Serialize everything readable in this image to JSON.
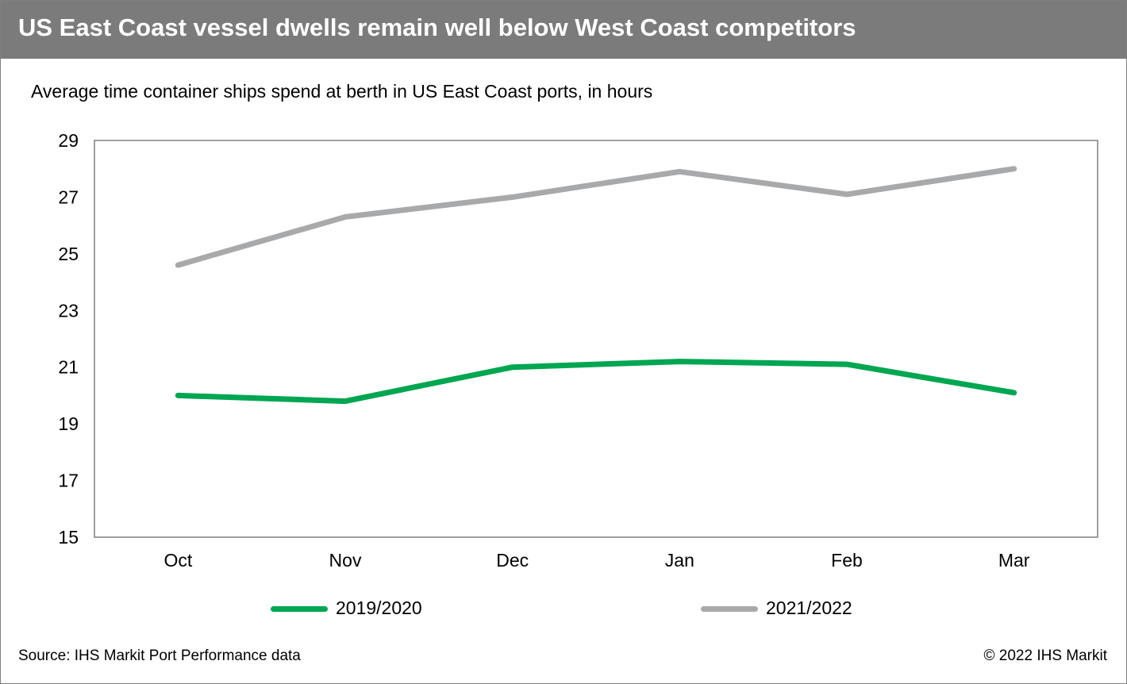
{
  "title": "US East Coast vessel dwells remain well below West Coast competitors",
  "subtitle": "Average time container ships spend at berth in US East Coast ports, in hours",
  "source": "Source: IHS Markit Port Performance data",
  "copyright": "© 2022 IHS Markit",
  "colors": {
    "series_2019_2020": "#00a651",
    "series_2021_2022": "#a8a9ab",
    "header_bg": "#7a7b7a",
    "axis": "#808080"
  },
  "chart_data": {
    "type": "line",
    "title": "US East Coast vessel dwells remain well below West Coast competitors",
    "subtitle": "Average time container ships spend at berth in US East Coast ports, in hours",
    "xlabel": "",
    "ylabel": "",
    "categories": [
      "Oct",
      "Nov",
      "Dec",
      "Jan",
      "Feb",
      "Mar"
    ],
    "ylim": [
      15,
      29
    ],
    "yticks": [
      15,
      17,
      19,
      21,
      23,
      25,
      27,
      29
    ],
    "grid": false,
    "legend": "bottom",
    "series": [
      {
        "name": "2019/2020",
        "values": [
          20.0,
          19.8,
          21.0,
          21.2,
          21.1,
          20.1
        ]
      },
      {
        "name": "2021/2022",
        "values": [
          24.6,
          26.3,
          27.0,
          27.9,
          27.1,
          28.0
        ]
      }
    ]
  }
}
